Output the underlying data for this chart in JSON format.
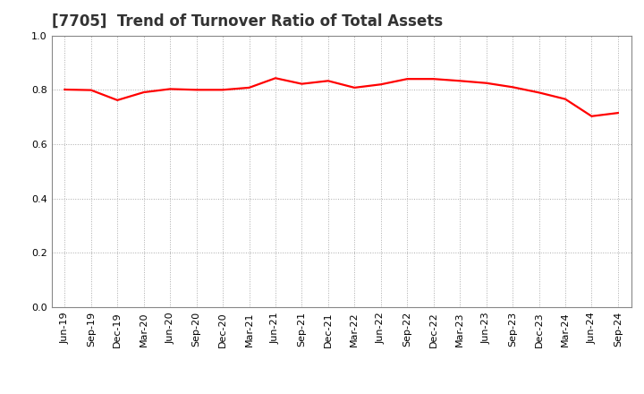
{
  "title": "[7705]  Trend of Turnover Ratio of Total Assets",
  "x_labels": [
    "Jun-19",
    "Sep-19",
    "Dec-19",
    "Mar-20",
    "Jun-20",
    "Sep-20",
    "Dec-20",
    "Mar-21",
    "Jun-21",
    "Sep-21",
    "Dec-21",
    "Mar-22",
    "Jun-22",
    "Sep-22",
    "Dec-22",
    "Mar-23",
    "Jun-23",
    "Sep-23",
    "Dec-23",
    "Mar-24",
    "Jun-24",
    "Sep-24"
  ],
  "values": [
    0.801,
    0.799,
    0.762,
    0.791,
    0.803,
    0.8,
    0.8,
    0.808,
    0.843,
    0.822,
    0.833,
    0.808,
    0.82,
    0.84,
    0.84,
    0.833,
    0.825,
    0.81,
    0.79,
    0.766,
    0.703,
    0.715
  ],
  "line_color": "#FF0000",
  "line_width": 1.6,
  "ylim": [
    0.0,
    1.0
  ],
  "yticks": [
    0.0,
    0.2,
    0.4,
    0.6,
    0.8,
    1.0
  ],
  "grid_color": "#aaaaaa",
  "background_color": "#ffffff",
  "title_fontsize": 12,
  "tick_fontsize": 8,
  "title_color": "#333333"
}
